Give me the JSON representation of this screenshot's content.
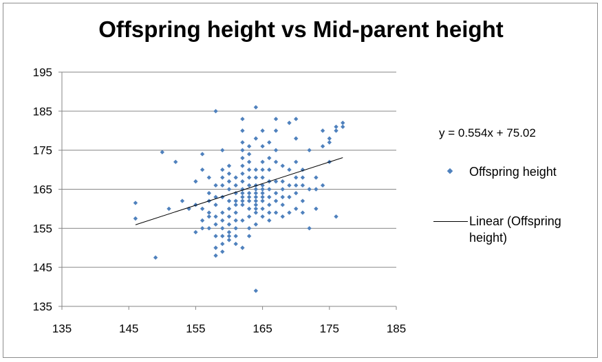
{
  "chart_data": {
    "type": "scatter",
    "title": "Offspring height vs Mid-parent height",
    "xlabel": "",
    "ylabel": "",
    "xlim": [
      135,
      185
    ],
    "ylim": [
      135,
      195
    ],
    "xticks": [
      135,
      145,
      155,
      165,
      175,
      185
    ],
    "yticks": [
      135,
      145,
      155,
      165,
      175,
      185,
      195
    ],
    "xtick_labels": [
      "135",
      "145",
      "155",
      "165",
      "175",
      "185"
    ],
    "ytick_labels": [
      "135",
      "145",
      "155",
      "165",
      "175",
      "185",
      "195"
    ],
    "grid": "horizontal",
    "legend_position": "right",
    "series": [
      {
        "name": "Offspring height",
        "color": "#4f81bd",
        "marker": "diamond",
        "x": [
          146,
          146,
          149,
          150,
          151,
          152,
          153,
          154,
          155,
          155,
          155,
          156,
          156,
          156,
          156,
          156,
          157,
          157,
          157,
          157,
          157,
          157,
          158,
          158,
          158,
          158,
          158,
          158,
          158,
          158,
          158,
          159,
          159,
          159,
          159,
          159,
          159,
          159,
          159,
          159,
          159,
          159,
          160,
          160,
          160,
          160,
          160,
          160,
          160,
          160,
          160,
          160,
          160,
          161,
          161,
          161,
          161,
          161,
          161,
          161,
          161,
          161,
          161,
          162,
          162,
          162,
          162,
          162,
          162,
          162,
          162,
          162,
          162,
          162,
          162,
          162,
          162,
          162,
          163,
          163,
          163,
          163,
          163,
          163,
          163,
          163,
          163,
          163,
          163,
          163,
          163,
          164,
          164,
          164,
          164,
          164,
          164,
          164,
          164,
          164,
          164,
          164,
          164,
          164,
          164,
          165,
          165,
          165,
          165,
          165,
          165,
          165,
          165,
          165,
          165,
          165,
          165,
          166,
          166,
          166,
          166,
          166,
          166,
          166,
          166,
          166,
          167,
          167,
          167,
          167,
          167,
          167,
          167,
          167,
          168,
          168,
          168,
          168,
          168,
          168,
          169,
          169,
          169,
          169,
          169,
          170,
          170,
          170,
          170,
          170,
          170,
          170,
          171,
          171,
          171,
          171,
          171,
          172,
          172,
          172,
          173,
          173,
          173,
          174,
          174,
          174,
          175,
          175,
          175,
          176,
          176,
          176,
          177,
          177
        ],
        "y": [
          161.5,
          157.5,
          147.5,
          174.5,
          160,
          172,
          162,
          160,
          167,
          161,
          154,
          174,
          170,
          160,
          157,
          155,
          168,
          164,
          162,
          159,
          158,
          155,
          185,
          166,
          163,
          161,
          158,
          156,
          153,
          150,
          148,
          175,
          170,
          168,
          166,
          163,
          159,
          157,
          155,
          153,
          151,
          149,
          171,
          169,
          167,
          165,
          162,
          160,
          158,
          156,
          154,
          153,
          152,
          168,
          166,
          164,
          162,
          161,
          159,
          157,
          155,
          153,
          151,
          183,
          180,
          177,
          175,
          173,
          171,
          169,
          167,
          165,
          164,
          163,
          162,
          161,
          157,
          150,
          176,
          174,
          172,
          170,
          168,
          166,
          164,
          163,
          162,
          160,
          158,
          155,
          153,
          186,
          178,
          170,
          168,
          166,
          165,
          164,
          163,
          162,
          161,
          160,
          159,
          156,
          139,
          180,
          176,
          172,
          170,
          168,
          166,
          165,
          164,
          163,
          162,
          160,
          158,
          177,
          173,
          170,
          167,
          165,
          163,
          161,
          159,
          157,
          183,
          180,
          175,
          172,
          167,
          164,
          162,
          159,
          171,
          167,
          165,
          163,
          161,
          158,
          182,
          170,
          166,
          163,
          159,
          183,
          178,
          172,
          168,
          166,
          164,
          160,
          170,
          168,
          166,
          162,
          159,
          175,
          165,
          155,
          168,
          165,
          160,
          180,
          176,
          166,
          178,
          177,
          172,
          181,
          180,
          158,
          182,
          181
        ],
        "display": "markers"
      },
      {
        "name": "Linear (Offspring height)",
        "color": "#000000",
        "type": "line",
        "x": [
          146,
          177
        ],
        "y": [
          155.9,
          173.1
        ],
        "display": "line"
      }
    ],
    "trendline_equation": "y = 0.554x + 75.02",
    "legend": [
      {
        "label": "Offspring height",
        "symbol": "diamond",
        "color": "#4f81bd"
      },
      {
        "label": "Linear (Offspring height)",
        "symbol": "line",
        "color": "#000000"
      }
    ]
  }
}
